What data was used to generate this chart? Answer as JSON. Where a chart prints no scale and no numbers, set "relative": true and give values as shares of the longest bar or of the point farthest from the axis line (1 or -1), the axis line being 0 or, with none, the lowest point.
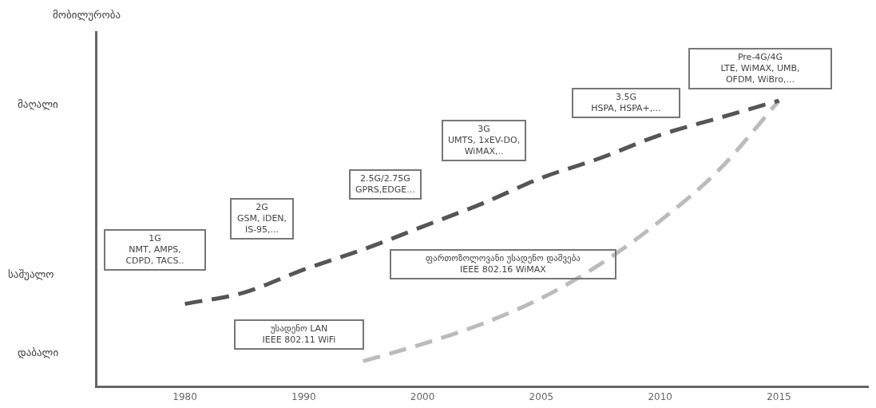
{
  "chart_data": {
    "type": "line",
    "categories": [
      null,
      "1980",
      null,
      "1990",
      null,
      "2000",
      null,
      "2005",
      null,
      "2010",
      null,
      "2015",
      null
    ],
    "series": [
      {
        "color": "#555555",
        "values": [
          null,
          0.29,
          0.33,
          0.41,
          0.48,
          0.56,
          0.64,
          0.73,
          0.8,
          0.88,
          0.94,
          1,
          null
        ]
      },
      {
        "color": "#bbbbbb",
        "values": [
          null,
          null,
          null,
          null,
          0.09,
          0.15,
          0.22,
          0.31,
          0.43,
          0.58,
          0.76,
          1,
          null
        ]
      }
    ],
    "relative": true,
    "line_style": "dashed",
    "marker": "none",
    "grid": false,
    "legend": false,
    "annotations": [
      "1G\nNMT, AMPS,\nCDPD, TACS..",
      "2G\nGSM, iDEN,\nIS-95,...",
      "2.5G/2.75G\nGPRS,EDGE...",
      "3G\nUMTS, 1xEV-DO,\nWiMAX,..",
      "3.5G\nHSPA, HSPA+,...",
      "Pre-4G/4G\nLTE, WiMAX, UMB,\nOFDM, WiBro,...",
      "ფართოზოლოვანი უსადენო დაშვება\nIEEE 802.16 WiMAX",
      "უსადენო LAN\nIEEE 802.11 WiFi",
      "მაღალი",
      "საშუალო",
      "დაბალი",
      "მობილურობა"
    ]
  }
}
